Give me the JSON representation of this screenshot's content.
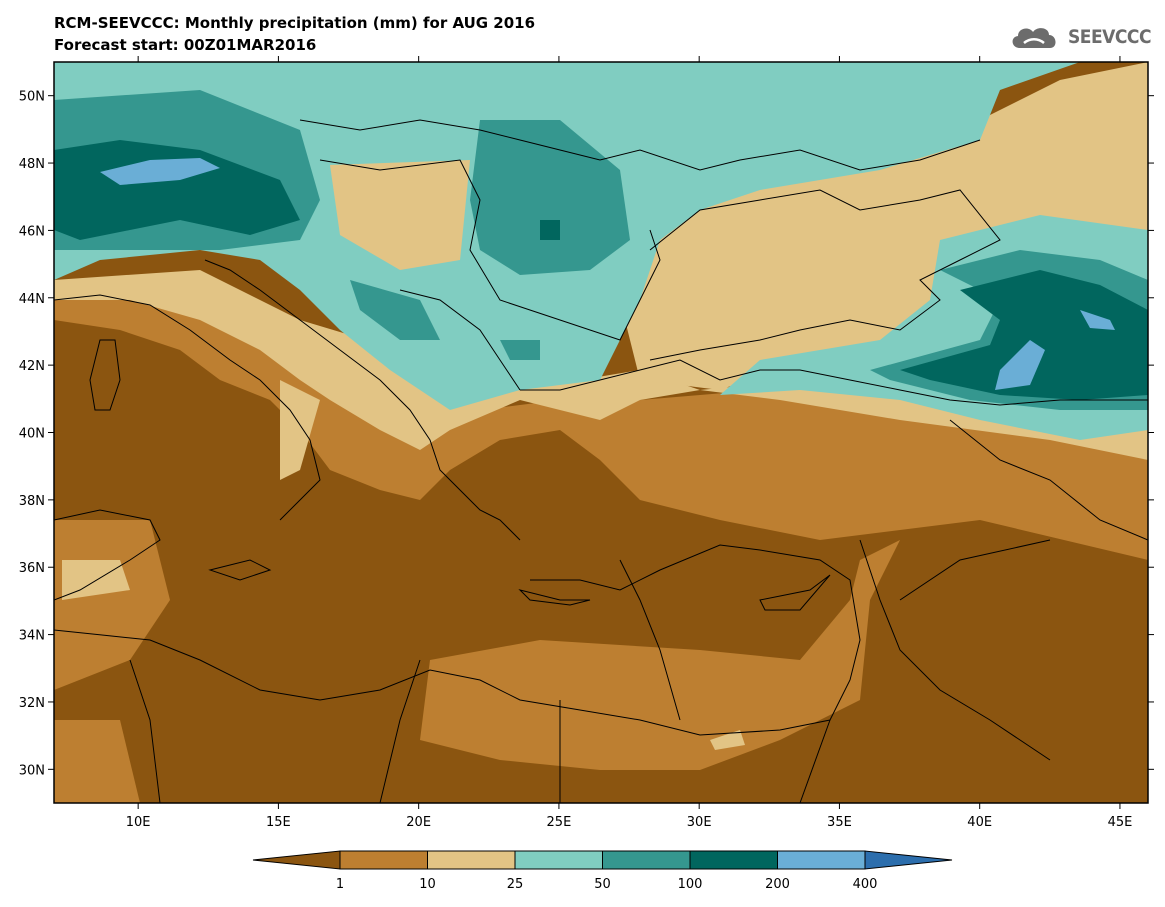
{
  "header": {
    "title": "RCM-SEEVCCC: Monthly precipitation (mm) for AUG 2016",
    "subtitle": "Forecast start: 00Z01MAR2016",
    "logo_text": "SEEVCCC"
  },
  "map": {
    "lat_range": [
      29,
      51
    ],
    "lon_range": [
      7,
      46
    ],
    "lat_ticks": [
      "30N",
      "32N",
      "34N",
      "36N",
      "38N",
      "40N",
      "42N",
      "44N",
      "46N",
      "48N",
      "50N"
    ],
    "lat_values": [
      30,
      32,
      34,
      36,
      38,
      40,
      42,
      44,
      46,
      48,
      50
    ],
    "lon_ticks": [
      "10E",
      "15E",
      "20E",
      "25E",
      "30E",
      "35E",
      "40E",
      "45E"
    ],
    "lon_values": [
      10,
      15,
      20,
      25,
      30,
      35,
      40,
      45
    ]
  },
  "legend": {
    "labels": [
      "1",
      "10",
      "25",
      "50",
      "100",
      "200",
      "400"
    ],
    "colors": [
      "#8b5510",
      "#bd7f31",
      "#e2c485",
      "#80cdc1",
      "#35978f",
      "#01665e",
      "#6aaed6",
      "#2c6ead"
    ]
  }
}
